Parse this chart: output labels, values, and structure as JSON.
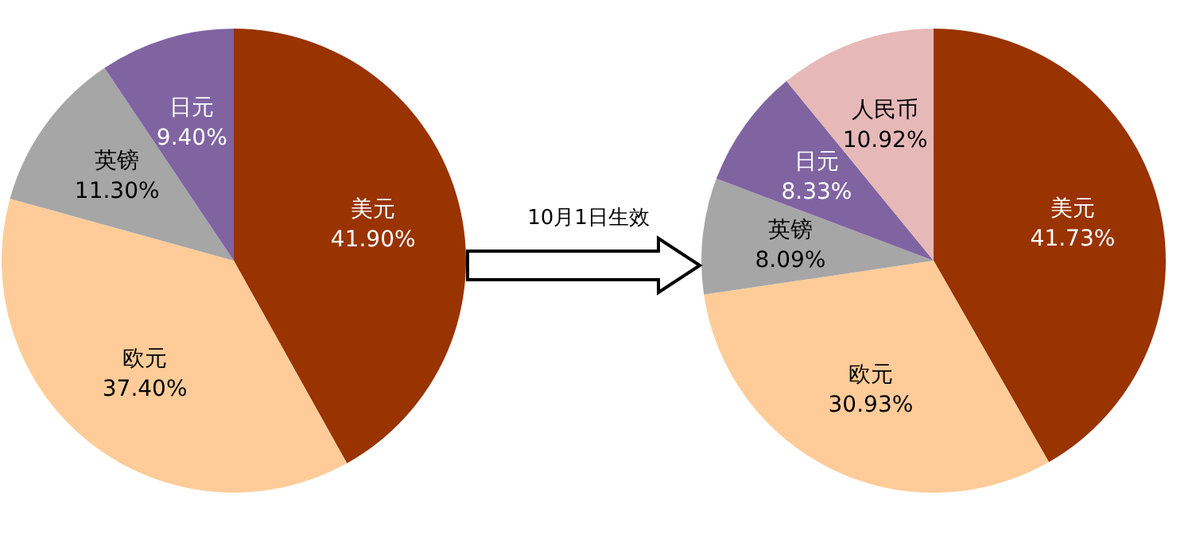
{
  "chart_data": [
    {
      "type": "pie",
      "categories": [
        "美元",
        "欧元",
        "英镑",
        "日元"
      ],
      "values": [
        41.9,
        37.4,
        11.3,
        9.4
      ],
      "colors": [
        "#993300",
        "#ffcc99",
        "#a6a6a6",
        "#8064a2"
      ],
      "value_labels": [
        "41.90%",
        "37.40%",
        "11.30%",
        "9.40%"
      ],
      "annotations": [
        "10月1日生效"
      ],
      "legend": false
    },
    {
      "type": "pie",
      "categories": [
        "美元",
        "欧元",
        "英镑",
        "日元",
        "人民币"
      ],
      "values": [
        41.73,
        30.93,
        8.09,
        8.33,
        10.92
      ],
      "colors": [
        "#993300",
        "#ffcc99",
        "#a6a6a6",
        "#8064a2",
        "#e6b9b8"
      ],
      "value_labels": [
        "41.73%",
        "30.93%",
        "8.09%",
        "8.33%",
        "10.92%"
      ],
      "legend": false
    }
  ]
}
